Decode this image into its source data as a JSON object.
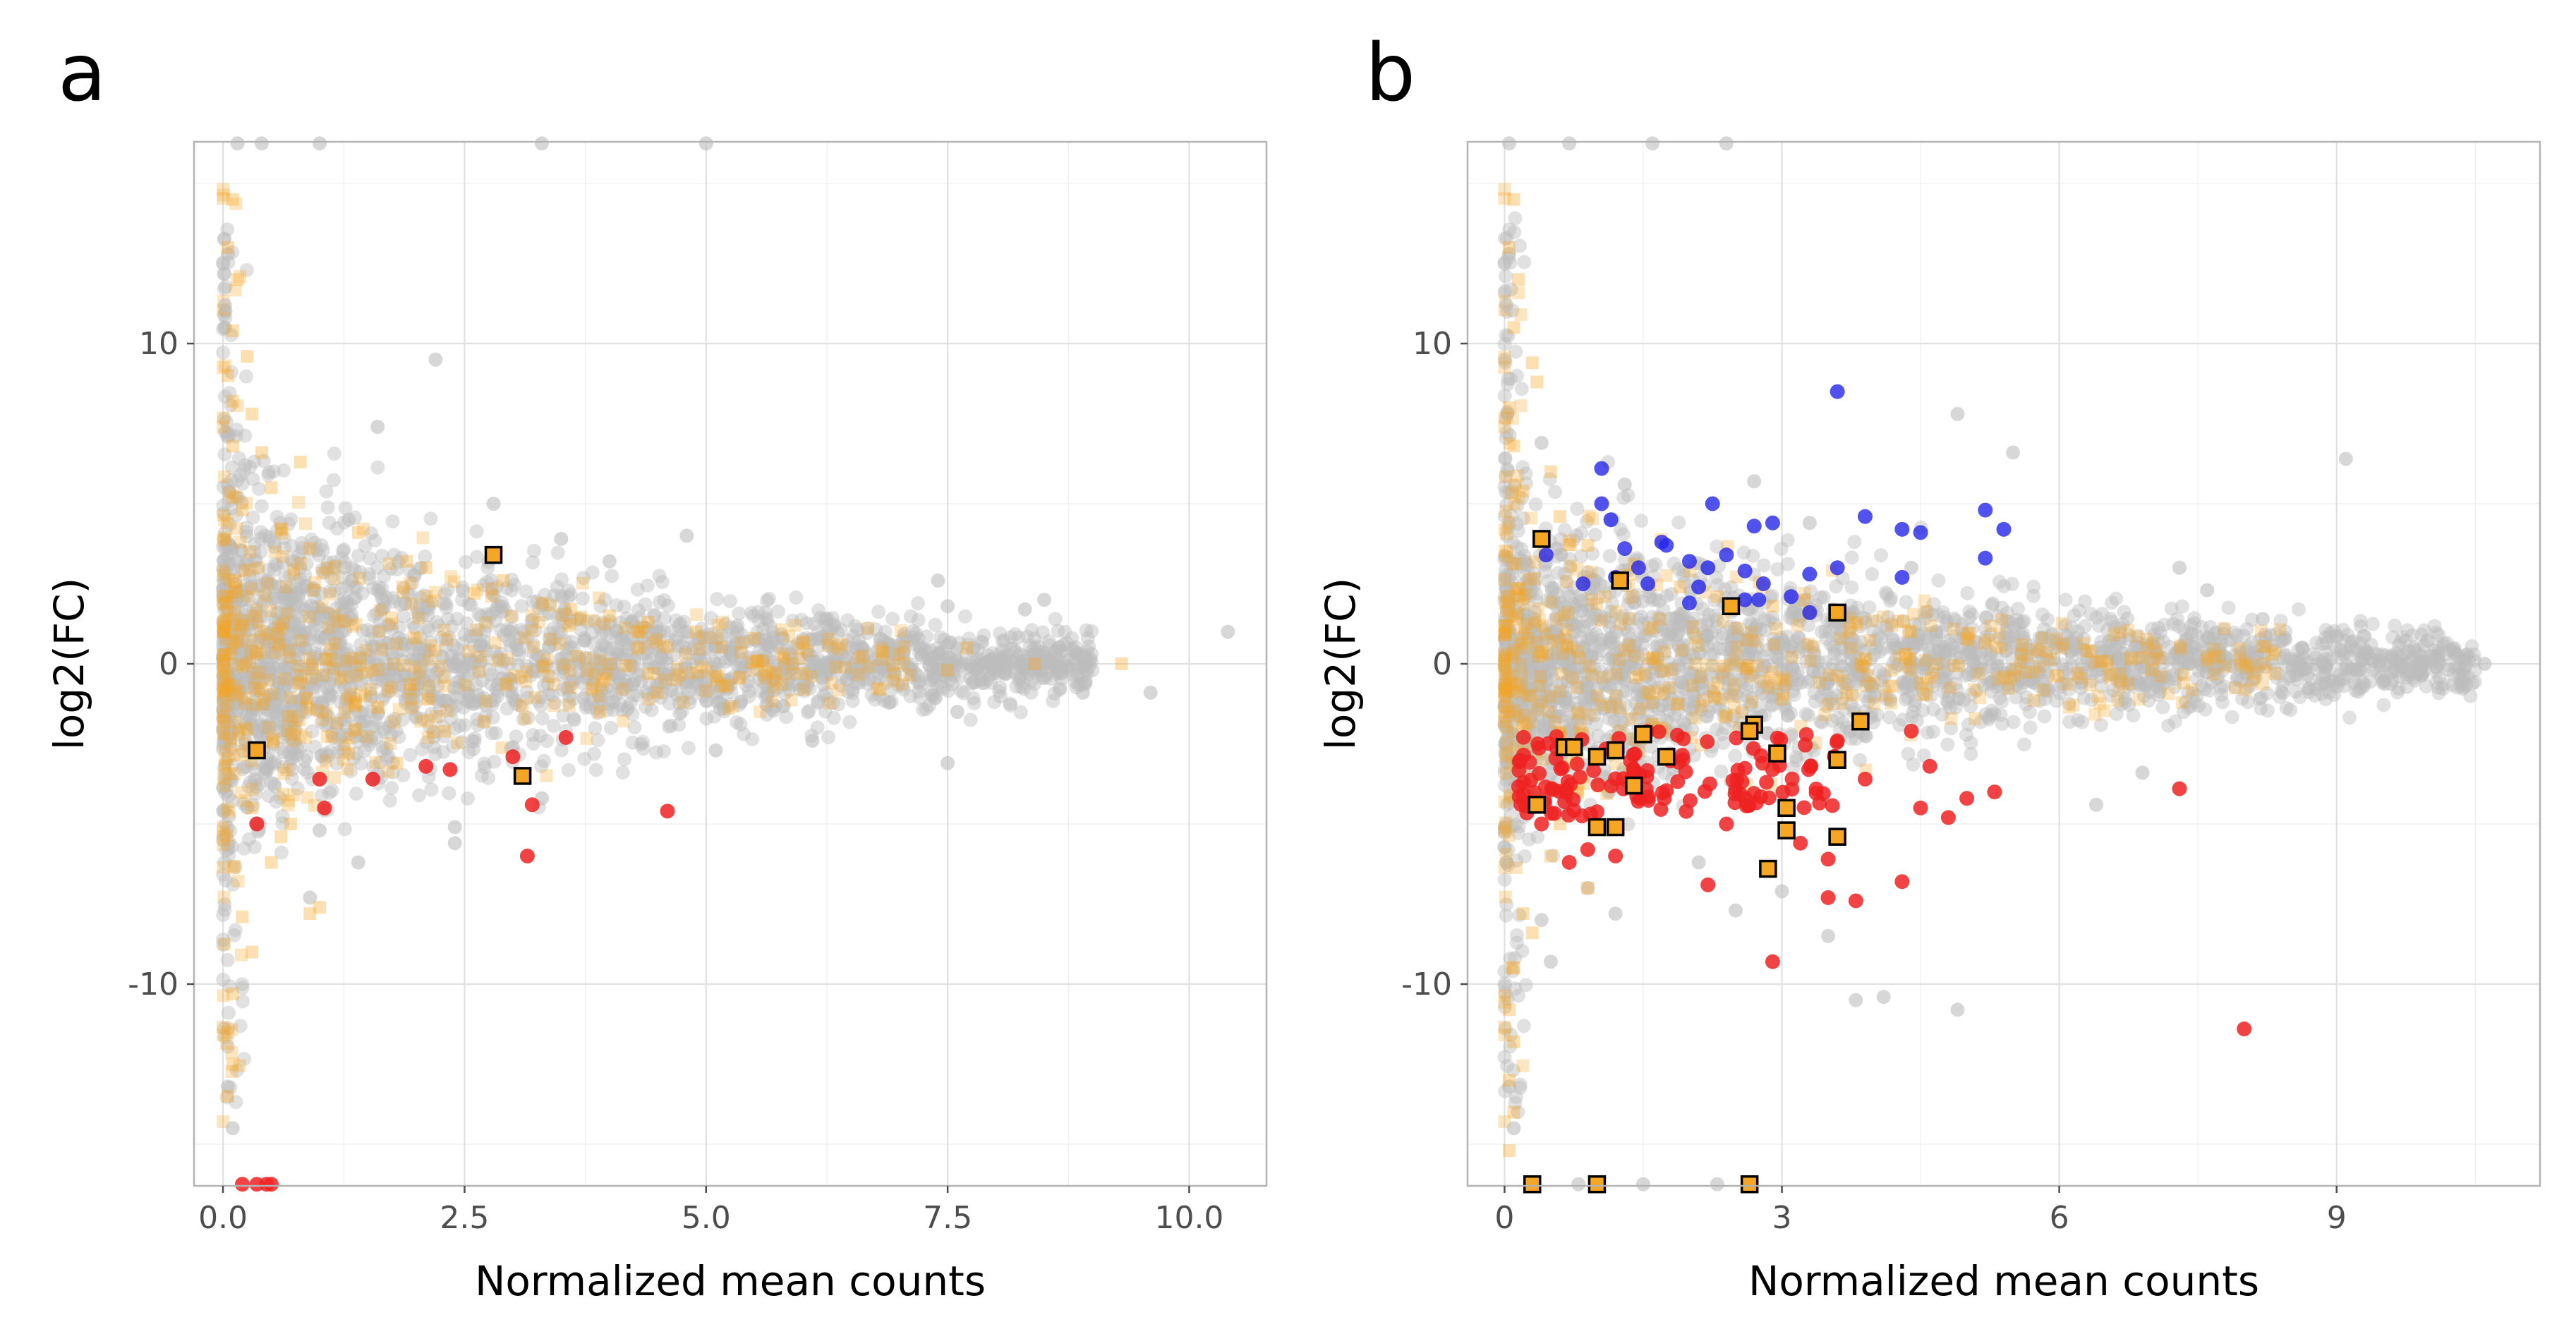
{
  "colors": {
    "background_genes": "#bdbdbd",
    "bg_highlight": "#f5a623",
    "significant_down": "#ee2222",
    "significant_up": "#2525e8",
    "marked_square": "#f5a623",
    "marked_square_border": "#000000"
  },
  "chart_data": [
    {
      "panel": "a",
      "type": "scatter",
      "title": "",
      "xlabel": "Normalized mean counts",
      "ylabel": "log2(FC)",
      "xlim": [
        -0.3,
        10.8
      ],
      "ylim": [
        -16.3,
        16.3
      ],
      "xticks": [
        0,
        2.5,
        5,
        7.5,
        10
      ],
      "xtick_labels": [
        "0.0",
        "2.5",
        "5.0",
        "7.5",
        "10.0"
      ],
      "yticks": [
        -10,
        0,
        10
      ],
      "ytick_labels": [
        "-10",
        "0",
        "10"
      ],
      "grid": true,
      "legend": "none",
      "cloud": {
        "x_max": 9.0,
        "spread_at_zero": 5.0,
        "spread_decay": 0.21,
        "n": 2600
      },
      "background_outliers": [
        [
          2.2,
          9.5
        ],
        [
          1.6,
          7.4
        ],
        [
          2.8,
          5.0
        ],
        [
          1.3,
          4.5
        ],
        [
          3.5,
          3.9
        ],
        [
          4.8,
          4.0
        ],
        [
          4.0,
          3.2
        ],
        [
          7.4,
          2.6
        ],
        [
          7.5,
          1.8
        ],
        [
          8.3,
          1.7
        ],
        [
          8.5,
          2.0
        ],
        [
          10.4,
          1.0
        ],
        [
          9.6,
          -0.9
        ],
        [
          8.9,
          -0.9
        ],
        [
          7.5,
          -3.1
        ],
        [
          7.6,
          -1.5
        ],
        [
          2.4,
          -5.1
        ],
        [
          2.4,
          -5.6
        ],
        [
          1.4,
          -6.2
        ],
        [
          1.0,
          -5.2
        ],
        [
          0.9,
          -7.3
        ],
        [
          3.3,
          -4.2
        ],
        [
          3.0,
          -2.6
        ],
        [
          5.1,
          -2.7
        ],
        [
          6.1,
          -2.4
        ],
        [
          0.1,
          -14.5
        ],
        [
          0.05,
          -13.2
        ],
        [
          0.05,
          12.8
        ],
        [
          0.02,
          11.2
        ],
        [
          3.3,
          16.4
        ],
        [
          1.0,
          16.4
        ],
        [
          0.15,
          16.4
        ],
        [
          0.4,
          16.4
        ],
        [
          5.0,
          16.4
        ]
      ],
      "highlight_points": [
        [
          0.1,
          14.5
        ],
        [
          0.05,
          13.0
        ],
        [
          0.15,
          12.0
        ],
        [
          0.1,
          10.4
        ],
        [
          0.05,
          9.0
        ],
        [
          0.1,
          8.2
        ],
        [
          0.3,
          7.8
        ],
        [
          0.1,
          6.8
        ],
        [
          0.8,
          6.3
        ],
        [
          0.5,
          5.5
        ],
        [
          0.2,
          4.8
        ],
        [
          0.6,
          4.2
        ],
        [
          0.9,
          3.6
        ],
        [
          1.4,
          4.1
        ],
        [
          1.9,
          3.2
        ],
        [
          2.1,
          3.0
        ],
        [
          2.6,
          2.2
        ],
        [
          2.9,
          2.6
        ],
        [
          3.3,
          1.9
        ],
        [
          3.6,
          1.7
        ],
        [
          4.0,
          1.5
        ],
        [
          4.4,
          1.3
        ],
        [
          4.9,
          1.0
        ],
        [
          5.5,
          0.8
        ],
        [
          6.0,
          0.7
        ],
        [
          6.4,
          0.6
        ],
        [
          7.0,
          0.3
        ],
        [
          7.7,
          0.5
        ],
        [
          8.4,
          0.0
        ],
        [
          9.3,
          0.0
        ],
        [
          0.3,
          -4.5
        ],
        [
          0.7,
          -5.0
        ],
        [
          0.5,
          -6.2
        ],
        [
          1.0,
          -7.6
        ],
        [
          0.9,
          -7.8
        ],
        [
          0.2,
          -7.9
        ],
        [
          0.3,
          -9.0
        ],
        [
          0.1,
          -10.3
        ],
        [
          0.05,
          -11.5
        ],
        [
          0.1,
          -12.5
        ],
        [
          0.05,
          -13.5
        ],
        [
          1.3,
          -2.8
        ],
        [
          1.8,
          -3.1
        ],
        [
          2.3,
          -2.1
        ],
        [
          2.7,
          -1.8
        ],
        [
          3.1,
          -1.3
        ],
        [
          3.9,
          -1.5
        ],
        [
          4.5,
          -0.9
        ],
        [
          5.2,
          -0.7
        ],
        [
          6.0,
          -0.3
        ],
        [
          6.8,
          -0.8
        ],
        [
          7.5,
          -0.2
        ],
        [
          0.6,
          -5.4
        ],
        [
          0.4,
          6.6
        ],
        [
          0.25,
          9.6
        ]
      ],
      "down_points": [
        [
          0.35,
          -5.0
        ],
        [
          1.0,
          -3.6
        ],
        [
          1.05,
          -4.5
        ],
        [
          1.55,
          -3.6
        ],
        [
          2.1,
          -3.2
        ],
        [
          2.35,
          -3.3
        ],
        [
          3.0,
          -2.9
        ],
        [
          3.55,
          -2.3
        ],
        [
          3.2,
          -4.4
        ],
        [
          3.15,
          -6.0
        ],
        [
          4.6,
          -4.6
        ],
        [
          0.2,
          -16.4
        ],
        [
          0.35,
          -16.4
        ],
        [
          0.45,
          -16.4
        ],
        [
          0.5,
          -16.4
        ]
      ],
      "up_points": [],
      "marked_squares": [
        [
          2.8,
          3.4
        ],
        [
          0.35,
          -2.7
        ],
        [
          3.1,
          -3.5
        ]
      ]
    },
    {
      "panel": "b",
      "type": "scatter",
      "title": "",
      "xlabel": "Normalized mean counts",
      "ylabel": "log2(FC)",
      "xlim": [
        -0.4,
        11.2
      ],
      "ylim": [
        -16.3,
        16.3
      ],
      "xticks": [
        0,
        3,
        6,
        9
      ],
      "xtick_labels": [
        "0",
        "3",
        "6",
        "9"
      ],
      "yticks": [
        -10,
        0,
        10
      ],
      "ytick_labels": [
        "-10",
        "0",
        "10"
      ],
      "grid": true,
      "legend": "none",
      "cloud": {
        "x_max": 10.5,
        "spread_at_zero": 4.5,
        "spread_decay": 0.17,
        "n": 2600
      },
      "background_outliers": [
        [
          0.4,
          6.9
        ],
        [
          1.3,
          5.6
        ],
        [
          2.7,
          5.7
        ],
        [
          4.9,
          7.8
        ],
        [
          5.5,
          6.6
        ],
        [
          9.1,
          6.4
        ],
        [
          10.6,
          0.0
        ],
        [
          3.3,
          4.4
        ],
        [
          4.4,
          3.0
        ],
        [
          7.3,
          3.0
        ],
        [
          7.6,
          2.3
        ],
        [
          8.2,
          1.4
        ],
        [
          8.4,
          0.7
        ],
        [
          9.6,
          0.2
        ],
        [
          0.4,
          -8.0
        ],
        [
          0.5,
          -9.3
        ],
        [
          1.2,
          -7.8
        ],
        [
          0.9,
          -7.0
        ],
        [
          2.1,
          -6.2
        ],
        [
          2.5,
          -7.7
        ],
        [
          3.0,
          -7.1
        ],
        [
          3.5,
          -8.5
        ],
        [
          3.8,
          -10.5
        ],
        [
          4.1,
          -10.4
        ],
        [
          4.9,
          -10.8
        ],
        [
          6.4,
          -4.4
        ],
        [
          6.9,
          -3.4
        ],
        [
          0.1,
          -14.5
        ],
        [
          0.05,
          -13.2
        ],
        [
          0.05,
          12.8
        ],
        [
          0.02,
          11.2
        ],
        [
          0.7,
          16.4
        ],
        [
          1.6,
          16.4
        ],
        [
          2.4,
          16.4
        ],
        [
          0.05,
          16.4
        ],
        [
          0.8,
          -16.4
        ],
        [
          1.5,
          -16.4
        ],
        [
          2.3,
          -16.4
        ]
      ],
      "highlight_points": [
        [
          0.1,
          14.5
        ],
        [
          0.05,
          13.0
        ],
        [
          0.15,
          12.0
        ],
        [
          0.1,
          10.5
        ],
        [
          0.3,
          9.4
        ],
        [
          0.35,
          8.8
        ],
        [
          0.05,
          8.0
        ],
        [
          0.1,
          6.8
        ],
        [
          0.5,
          6.0
        ],
        [
          0.2,
          5.4
        ],
        [
          0.6,
          4.6
        ],
        [
          0.9,
          3.7
        ],
        [
          1.4,
          3.1
        ],
        [
          1.9,
          2.4
        ],
        [
          2.3,
          2.1
        ],
        [
          2.9,
          1.8
        ],
        [
          3.3,
          1.6
        ],
        [
          3.8,
          1.3
        ],
        [
          4.4,
          1.0
        ],
        [
          5.0,
          0.8
        ],
        [
          5.6,
          0.6
        ],
        [
          6.3,
          0.4
        ],
        [
          6.9,
          0.2
        ],
        [
          7.6,
          0.1
        ],
        [
          8.3,
          0.3
        ],
        [
          0.3,
          -4.3
        ],
        [
          0.6,
          -5.0
        ],
        [
          0.5,
          -6.0
        ],
        [
          0.9,
          -7.0
        ],
        [
          0.2,
          -7.8
        ],
        [
          0.3,
          -8.4
        ],
        [
          0.1,
          -9.5
        ],
        [
          0.05,
          -10.8
        ],
        [
          0.1,
          -11.8
        ],
        [
          0.05,
          -13.0
        ],
        [
          0.1,
          -14.0
        ],
        [
          0.05,
          -15.2
        ],
        [
          1.2,
          -2.4
        ],
        [
          1.7,
          -2.0
        ],
        [
          2.4,
          -1.6
        ],
        [
          3.0,
          -1.1
        ],
        [
          3.7,
          -0.9
        ],
        [
          4.5,
          -0.6
        ],
        [
          5.4,
          -0.4
        ],
        [
          6.2,
          -0.3
        ],
        [
          7.0,
          -0.2
        ]
      ],
      "up_points": [
        [
          0.45,
          3.4
        ],
        [
          0.85,
          2.5
        ],
        [
          1.2,
          2.7
        ],
        [
          1.05,
          6.1
        ],
        [
          1.05,
          5.0
        ],
        [
          1.15,
          4.5
        ],
        [
          1.3,
          3.6
        ],
        [
          1.45,
          3.0
        ],
        [
          1.7,
          3.8
        ],
        [
          1.75,
          3.7
        ],
        [
          2.0,
          3.2
        ],
        [
          2.1,
          2.4
        ],
        [
          2.2,
          3.0
        ],
        [
          2.25,
          5.0
        ],
        [
          2.4,
          3.4
        ],
        [
          2.6,
          2.9
        ],
        [
          2.7,
          4.3
        ],
        [
          2.75,
          2.0
        ],
        [
          2.8,
          2.5
        ],
        [
          2.9,
          4.4
        ],
        [
          3.1,
          2.1
        ],
        [
          3.3,
          2.8
        ],
        [
          3.6,
          8.5
        ],
        [
          3.6,
          3.0
        ],
        [
          3.9,
          4.6
        ],
        [
          4.3,
          2.7
        ],
        [
          4.3,
          4.2
        ],
        [
          4.5,
          4.1
        ],
        [
          5.2,
          4.8
        ],
        [
          5.2,
          3.3
        ],
        [
          5.4,
          4.2
        ],
        [
          2.0,
          1.9
        ],
        [
          2.6,
          2.0
        ],
        [
          3.3,
          1.6
        ],
        [
          1.55,
          2.5
        ]
      ],
      "down_points": [
        [
          8.0,
          -11.4
        ],
        [
          7.3,
          -3.9
        ],
        [
          2.9,
          -9.3
        ],
        [
          3.8,
          -7.4
        ],
        [
          4.3,
          -6.8
        ],
        [
          3.5,
          -7.3
        ],
        [
          5.3,
          -4.0
        ],
        [
          4.8,
          -4.8
        ],
        [
          4.5,
          -4.5
        ],
        [
          5.0,
          -4.2
        ],
        [
          4.6,
          -3.2
        ],
        [
          3.2,
          -5.6
        ],
        [
          3.5,
          -6.1
        ],
        [
          2.2,
          -6.9
        ],
        [
          1.2,
          -6.0
        ],
        [
          0.7,
          -6.2
        ],
        [
          0.4,
          -5.0
        ],
        [
          0.9,
          -5.8
        ],
        [
          4.4,
          -2.1
        ],
        [
          3.6,
          -2.4
        ],
        [
          3.9,
          -3.6
        ],
        [
          2.9,
          -3.3
        ],
        [
          2.6,
          -4.2
        ],
        [
          2.4,
          -5.0
        ]
      ],
      "down_cluster": {
        "x_range": [
          0.15,
          3.6
        ],
        "y_range": [
          -2.0,
          -4.8
        ],
        "n": 140
      },
      "marked_squares": [
        [
          0.4,
          3.9
        ],
        [
          1.25,
          2.6
        ],
        [
          2.45,
          1.8
        ],
        [
          3.6,
          1.6
        ],
        [
          0.65,
          -2.6
        ],
        [
          0.75,
          -2.6
        ],
        [
          1.0,
          -2.9
        ],
        [
          1.2,
          -2.7
        ],
        [
          1.5,
          -2.2
        ],
        [
          1.75,
          -2.9
        ],
        [
          2.7,
          -1.9
        ],
        [
          2.65,
          -2.1
        ],
        [
          2.95,
          -2.8
        ],
        [
          3.85,
          -1.8
        ],
        [
          3.6,
          -3.0
        ],
        [
          0.35,
          -4.4
        ],
        [
          1.0,
          -5.1
        ],
        [
          1.2,
          -5.1
        ],
        [
          1.4,
          -3.8
        ],
        [
          3.05,
          -4.5
        ],
        [
          3.05,
          -5.2
        ],
        [
          3.6,
          -5.4
        ],
        [
          2.85,
          -6.4
        ],
        [
          0.3,
          -16.4
        ],
        [
          1.0,
          -16.4
        ],
        [
          2.65,
          -16.4
        ]
      ]
    }
  ]
}
